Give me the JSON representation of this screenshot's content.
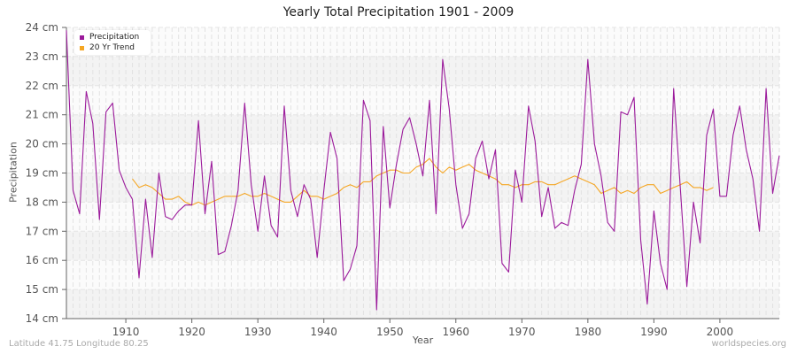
{
  "title": "Yearly Total Precipitation 1901 - 2009",
  "footer": {
    "location": "Latitude 41.75 Longitude 80.25",
    "source": "worldspecies.org"
  },
  "legend": [
    {
      "label": "Precipitation",
      "color": "#9b1a9b"
    },
    {
      "label": "20 Yr Trend",
      "color": "#f5a623"
    }
  ],
  "chart_data": {
    "type": "line",
    "title": "Yearly Total Precipitation 1901 - 2009",
    "xlabel": "Year",
    "ylabel": "Precipitation",
    "xlim": [
      1901,
      2009
    ],
    "ylim": [
      14,
      24
    ],
    "x_ticks": [
      1910,
      1920,
      1930,
      1940,
      1950,
      1960,
      1970,
      1980,
      1990,
      2000
    ],
    "y_ticks": [
      "14 cm",
      "15 cm",
      "16 cm",
      "17 cm",
      "18 cm",
      "19 cm",
      "20 cm",
      "21 cm",
      "22 cm",
      "23 cm",
      "24 cm"
    ],
    "grid": true,
    "legend_position": "top-left",
    "series": [
      {
        "name": "Precipitation",
        "color": "#9b1a9b",
        "x_start": 1901,
        "values": [
          23.9,
          18.4,
          17.6,
          21.8,
          20.7,
          17.4,
          21.1,
          21.4,
          19.1,
          18.5,
          18.1,
          15.4,
          18.1,
          16.1,
          19.0,
          17.5,
          17.4,
          17.7,
          17.9,
          17.9,
          20.8,
          17.6,
          19.4,
          16.2,
          16.3,
          17.2,
          18.4,
          21.4,
          18.6,
          17.0,
          18.9,
          17.2,
          16.8,
          21.3,
          18.4,
          17.5,
          18.6,
          18.1,
          16.1,
          18.4,
          20.4,
          19.5,
          15.3,
          15.7,
          16.5,
          21.5,
          20.8,
          14.3,
          20.6,
          17.8,
          19.3,
          20.5,
          20.9,
          20.0,
          18.9,
          21.5,
          17.6,
          22.9,
          21.2,
          18.6,
          17.1,
          17.6,
          19.5,
          20.1,
          18.8,
          19.8,
          15.9,
          15.6,
          19.1,
          18.0,
          21.3,
          20.1,
          17.5,
          18.5,
          17.1,
          17.3,
          17.2,
          18.4,
          19.3,
          22.9,
          20.0,
          18.9,
          17.3,
          17.0,
          21.1,
          21.0,
          21.6,
          16.7,
          14.5,
          17.7,
          15.9,
          15.0,
          21.9,
          18.5,
          15.1,
          18.0,
          16.6,
          20.3,
          21.2,
          18.2,
          18.2,
          20.3,
          21.3,
          19.8,
          18.8,
          17.0,
          21.9,
          18.3,
          19.6
        ]
      },
      {
        "name": "20 Yr Trend",
        "color": "#f5a623",
        "x_start": 1911,
        "values": [
          18.8,
          18.5,
          18.6,
          18.5,
          18.3,
          18.1,
          18.1,
          18.2,
          18.0,
          17.9,
          18.0,
          17.9,
          18.0,
          18.1,
          18.2,
          18.2,
          18.2,
          18.3,
          18.2,
          18.2,
          18.3,
          18.2,
          18.1,
          18.0,
          18.0,
          18.2,
          18.4,
          18.2,
          18.2,
          18.1,
          18.2,
          18.3,
          18.5,
          18.6,
          18.5,
          18.7,
          18.7,
          18.9,
          19.0,
          19.1,
          19.1,
          19.0,
          19.0,
          19.2,
          19.3,
          19.5,
          19.2,
          19.0,
          19.2,
          19.1,
          19.2,
          19.3,
          19.1,
          19.0,
          18.9,
          18.8,
          18.6,
          18.6,
          18.5,
          18.6,
          18.6,
          18.7,
          18.7,
          18.6,
          18.6,
          18.7,
          18.8,
          18.9,
          18.8,
          18.7,
          18.6,
          18.3,
          18.4,
          18.5,
          18.3,
          18.4,
          18.3,
          18.5,
          18.6,
          18.6,
          18.3,
          18.4,
          18.5,
          18.6,
          18.7,
          18.5,
          18.5,
          18.4,
          18.5
        ]
      }
    ]
  }
}
